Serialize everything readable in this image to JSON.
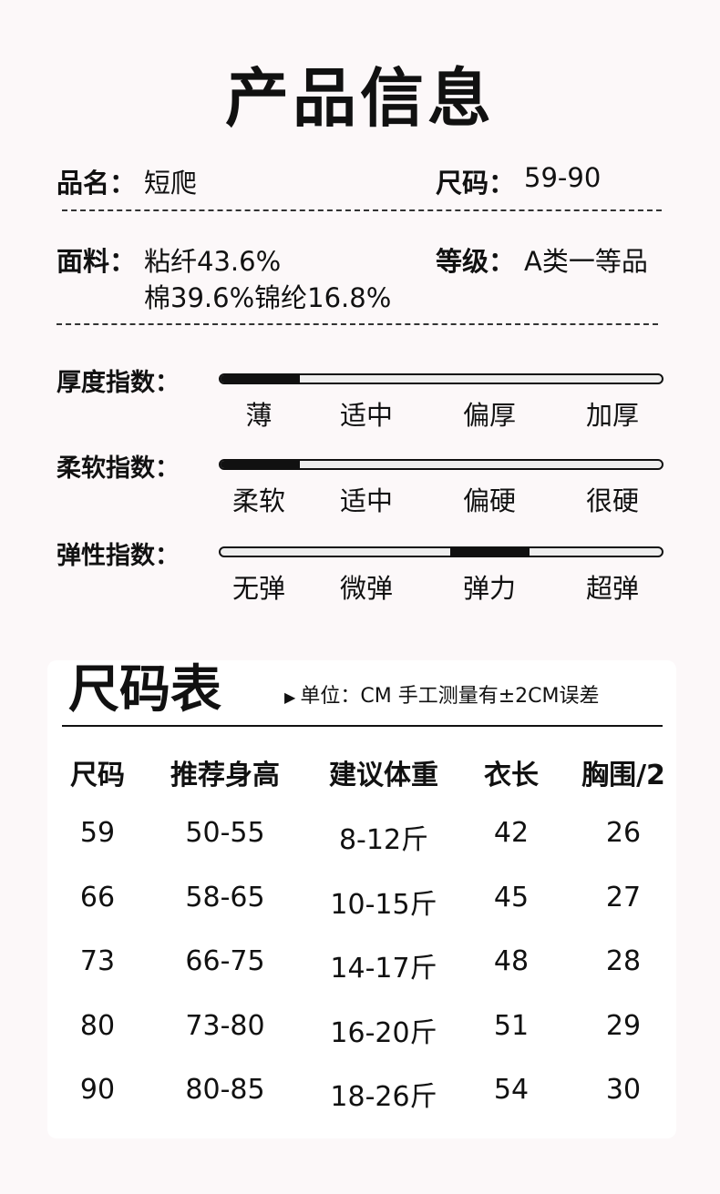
{
  "title": "产品信息",
  "info": {
    "name_label": "品名：",
    "name_value": "短爬",
    "size_label": "尺码：",
    "size_value": "59-90",
    "fabric_label": "面料：",
    "fabric_line1": "粘纤43.6%",
    "fabric_line2": "棉39.6%锦纶16.8%",
    "grade_label": "等级：",
    "grade_value": "A类一等品"
  },
  "indices": [
    {
      "label": "厚度指数：",
      "levels": [
        "薄",
        "适中",
        "偏厚",
        "加厚"
      ],
      "selected_index": 0
    },
    {
      "label": "柔软指数：",
      "levels": [
        "柔软",
        "适中",
        "偏硬",
        "很硬"
      ],
      "selected_index": 0
    },
    {
      "label": "弹性指数：",
      "levels": [
        "无弹",
        "微弹",
        "弹力",
        "超弹"
      ],
      "selected_index": 2
    }
  ],
  "size_chart": {
    "title": "尺码表",
    "note_icon": "triangle-right-icon",
    "note": "单位：CM 手工测量有±2CM误差",
    "headers": [
      "尺码",
      "推荐身高",
      "建议体重",
      "衣长",
      "胸围/2"
    ],
    "rows": [
      [
        "59",
        "50-55",
        "8-12斤",
        "42",
        "26"
      ],
      [
        "66",
        "58-65",
        "10-15斤",
        "45",
        "27"
      ],
      [
        "73",
        "66-75",
        "14-17斤",
        "48",
        "28"
      ],
      [
        "80",
        "73-80",
        "16-20斤",
        "51",
        "29"
      ],
      [
        "90",
        "80-85",
        "18-26斤",
        "54",
        "30"
      ]
    ]
  }
}
